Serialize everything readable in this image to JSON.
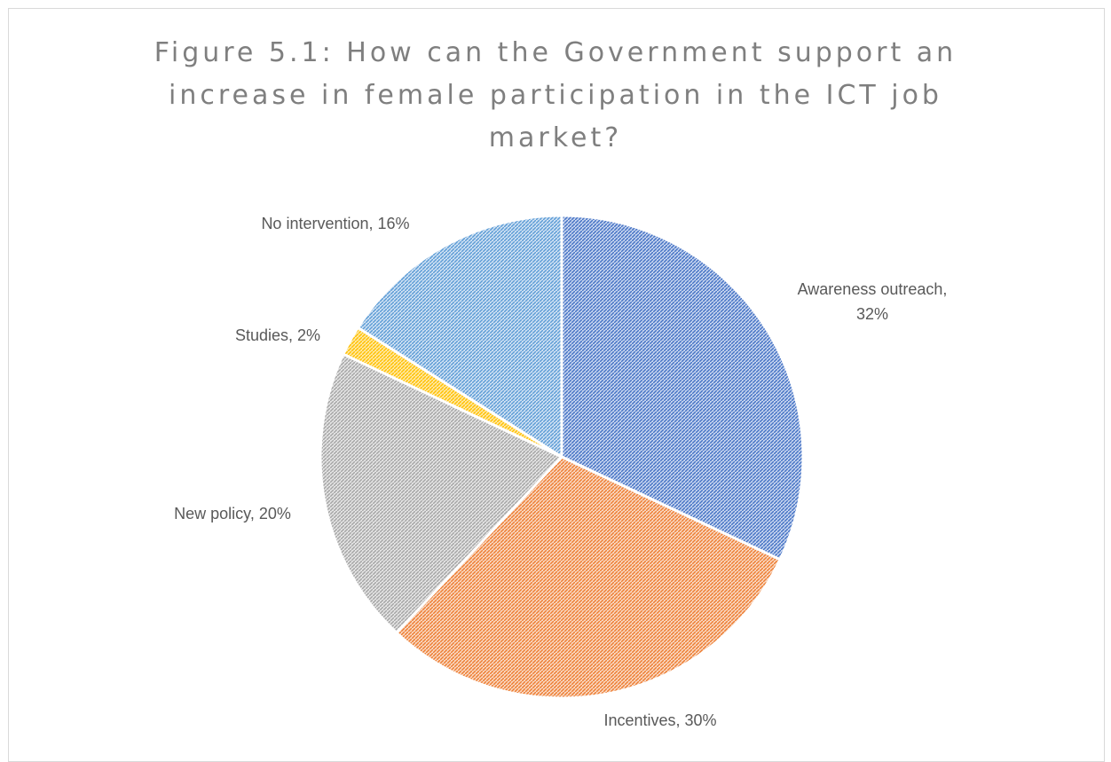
{
  "chart_data": {
    "type": "pie",
    "title": "Figure 5.1: How can the Government support an increase in female participation in the ICT job market?",
    "slices": [
      {
        "label": "Awareness outreach",
        "value": 32,
        "display": [
          "Awareness outreach,",
          "32%"
        ],
        "color": "#4472c4",
        "pattern": "blue"
      },
      {
        "label": "Incentives",
        "value": 30,
        "display": [
          "Incentives, 30%"
        ],
        "color": "#ed7d31",
        "pattern": "orange"
      },
      {
        "label": "New policy",
        "value": 20,
        "display": [
          "New policy, 20%"
        ],
        "color": "#a5a5a5",
        "pattern": "gray"
      },
      {
        "label": "Studies",
        "value": 2,
        "display": [
          "Studies, 2%"
        ],
        "color": "#ffc000",
        "pattern": "gold"
      },
      {
        "label": "No intervention",
        "value": 16,
        "display": [
          "No intervention, 16%"
        ],
        "color": "#5b9bd5",
        "pattern": "lightblue"
      }
    ],
    "legend": "none"
  }
}
